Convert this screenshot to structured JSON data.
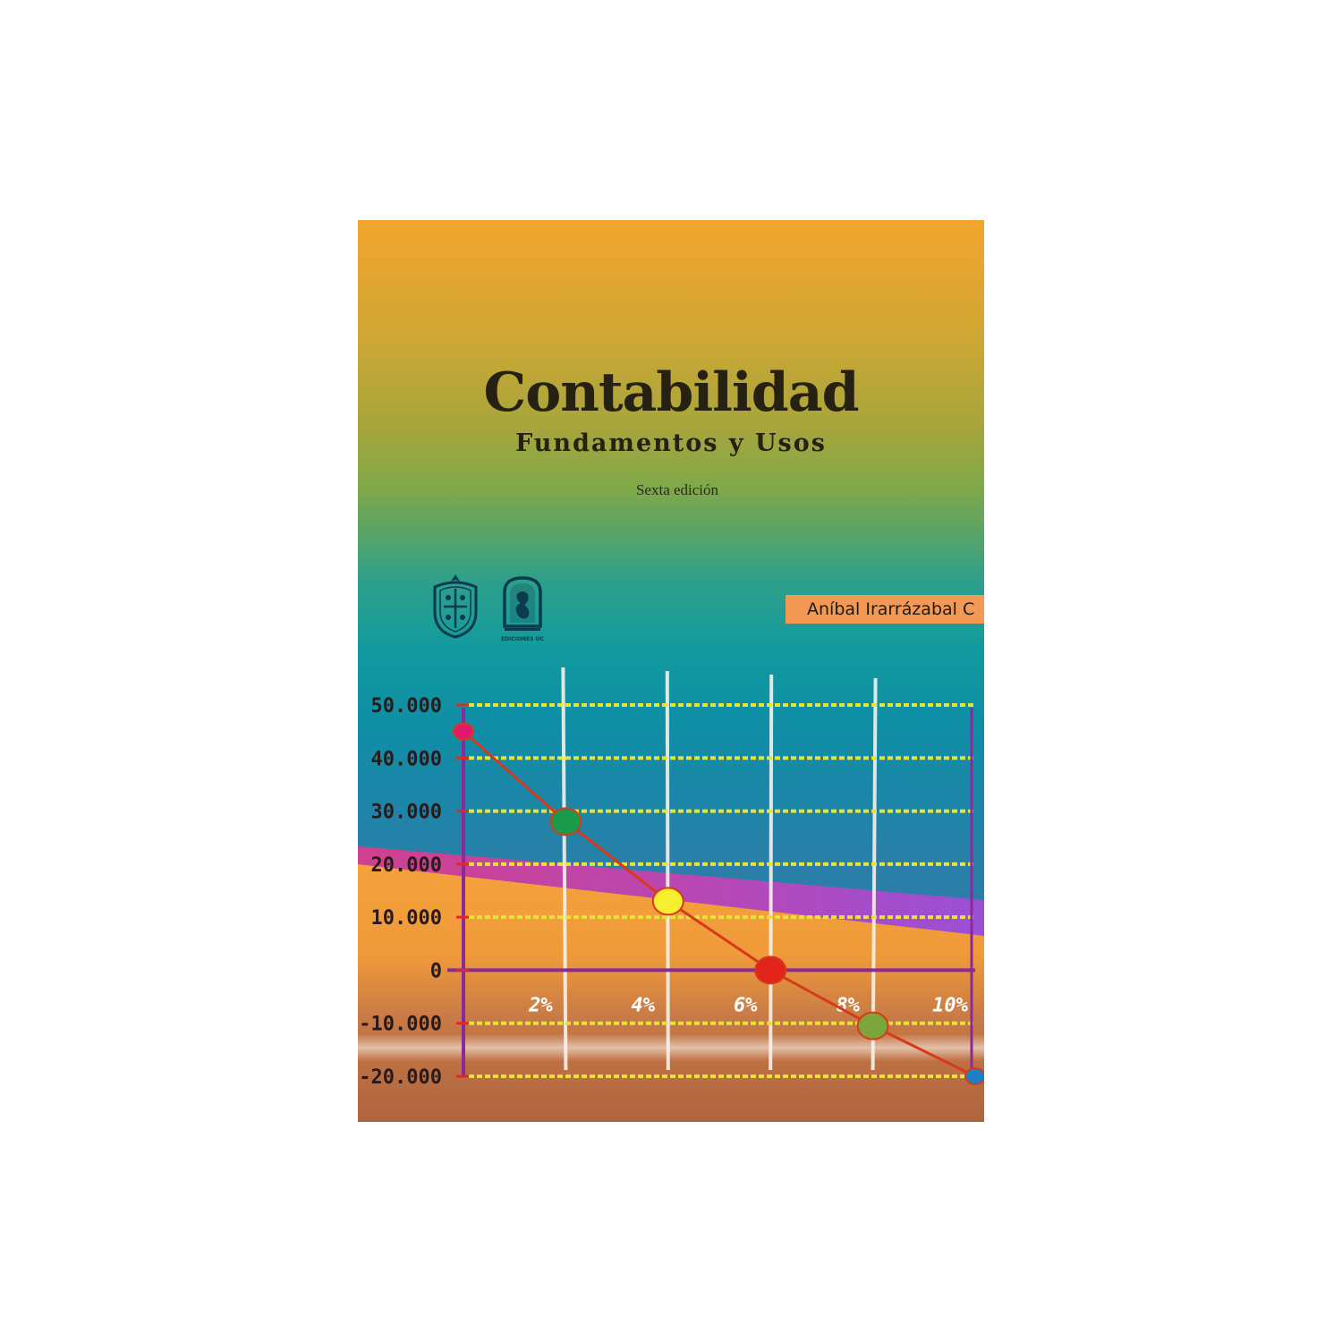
{
  "cover": {
    "title": "Contabilidad",
    "subtitle": "Fundamentos y Usos",
    "edition": "Sexta edición",
    "author": "Aníbal Irarrázabal C",
    "logos": [
      {
        "name": "university-crest-icon"
      },
      {
        "name": "ediciones-uc-logo",
        "caption": "EDICIONES UC"
      }
    ]
  },
  "chart_data": {
    "type": "line",
    "x": [
      0,
      2,
      4,
      6,
      8,
      10
    ],
    "xtick_labels": [
      "2%",
      "4%",
      "6%",
      "8%",
      "10%"
    ],
    "xtick_values": [
      2,
      4,
      6,
      8,
      10
    ],
    "ytick_labels": [
      "50.000",
      "40.000",
      "30.000",
      "20.000",
      "10.000",
      "0",
      "-10.000",
      "-20.000"
    ],
    "ytick_values": [
      50000,
      40000,
      30000,
      20000,
      10000,
      0,
      -10000,
      -20000
    ],
    "series": [
      {
        "values": [
          45000,
          28000,
          13000,
          0,
          -10500,
          -20000
        ]
      }
    ],
    "point_colors": [
      "#e0186e",
      "#1a9a4a",
      "#f6ee2e",
      "#e2241c",
      "#7da63a",
      "#1e7fc4"
    ],
    "line_color": "#d63a1a",
    "grid_color": "#e8e33a",
    "axis_color": "#8a2a9a",
    "ylim": [
      -20000,
      50000
    ],
    "xlim": [
      0,
      10
    ],
    "grid": true
  }
}
